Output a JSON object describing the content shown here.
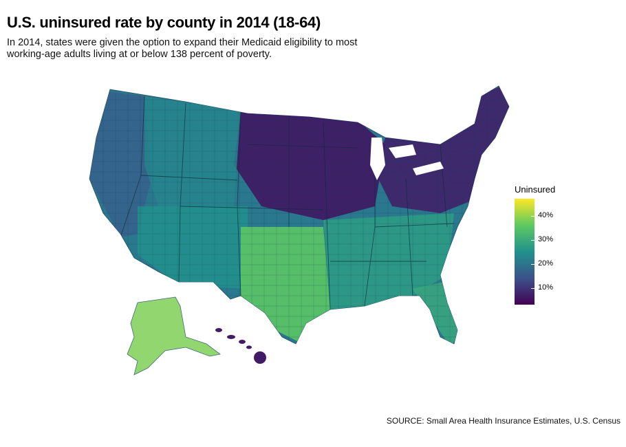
{
  "title": "U.S. uninsured rate by county in 2014 (18-64)",
  "subtitle": "In 2014, states were given the option to expand their Medicaid eligibility to most working-age adults living at or below 138 percent of poverty.",
  "legend": {
    "title": "Uninsured",
    "ticks": [
      "40%",
      "30%",
      "20%",
      "10%"
    ],
    "color_low": "#440154",
    "color_high": "#fde725"
  },
  "source": "SOURCE: Small Area Health Insurance Estimates, U.S. Census",
  "map": {
    "regions": [
      {
        "name": "upper-midwest-low-region",
        "level": 0.05
      },
      {
        "name": "northeast-low-region",
        "level": 0.08
      },
      {
        "name": "west-coast-region",
        "level": 0.3
      },
      {
        "name": "mountain-west-region",
        "level": 0.45
      },
      {
        "name": "southwest-region",
        "level": 0.5
      },
      {
        "name": "texas-high-region",
        "level": 0.75
      },
      {
        "name": "southeast-region",
        "level": 0.55
      },
      {
        "name": "florida-region",
        "level": 0.6
      },
      {
        "name": "alaska-region",
        "level": 0.8
      },
      {
        "name": "hawaii-region",
        "level": 0.08
      }
    ]
  }
}
